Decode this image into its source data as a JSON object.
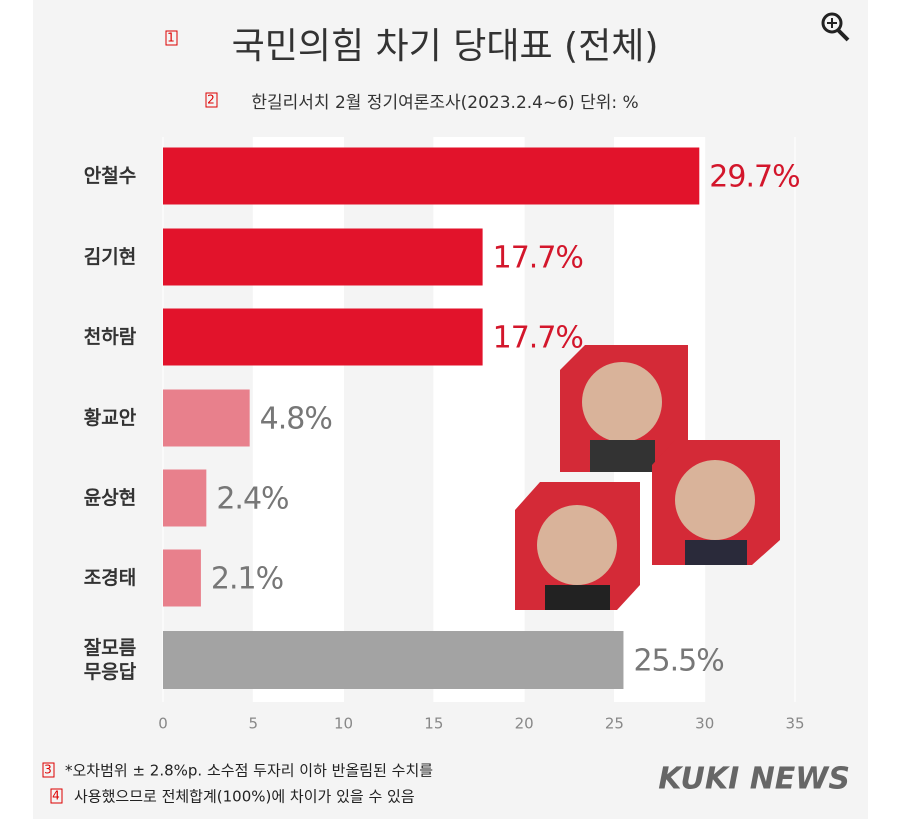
{
  "chart_data": {
    "type": "hbar",
    "title": "국민의힘 차기 당대표 (전체)",
    "subtitle": "한길리서치 2월 정기여론조사(2023.2.4~6) 단위: %",
    "categories": [
      "안철수",
      "김기현",
      "천하람",
      "황교안",
      "윤상현",
      "조경태",
      "잘모름\n무응답"
    ],
    "values": [
      29.7,
      17.7,
      17.7,
      4.8,
      2.4,
      2.1,
      25.5
    ],
    "value_labels": [
      "29.7%",
      "17.7%",
      "17.7%",
      "4.8%",
      "2.4%",
      "2.1%",
      "25.5%"
    ],
    "colors": [
      "#e2132b",
      "#e2132b",
      "#e2132b",
      "#e8808c",
      "#e8808c",
      "#e8808c",
      "#a3a3a3"
    ],
    "label_colors": [
      "#d3162b",
      "#d3162b",
      "#d3162b",
      "#777777",
      "#777777",
      "#777777",
      "#777777"
    ],
    "xlim": [
      0,
      35
    ],
    "xticks": [
      0,
      5,
      10,
      15,
      20,
      25,
      30,
      35
    ],
    "footnotes": [
      "*오차범위 ± 2.8%p. 소수점 두자리 이하 반올림된 수치를",
      "사용했으므로 전체합계(100%)에 차이가 있을 수 있음"
    ],
    "source": "KUKI NEWS"
  },
  "markers": [
    "1",
    "2",
    "3",
    "4"
  ]
}
